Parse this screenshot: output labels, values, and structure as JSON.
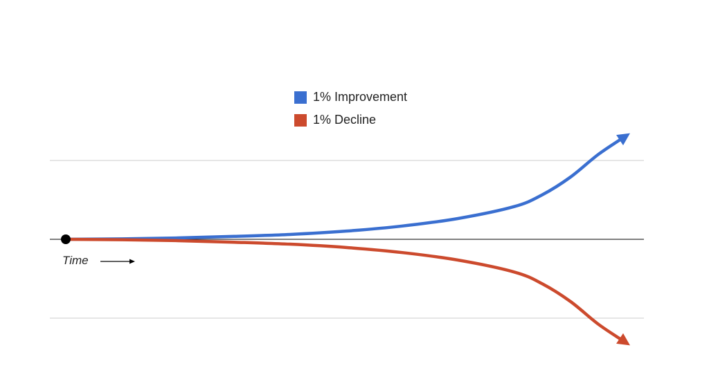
{
  "chart_data": {
    "type": "line",
    "title": "",
    "xlabel": "Time",
    "ylabel": "",
    "legend_position": "top-center",
    "grid": true,
    "series": [
      {
        "name": "1% Improvement",
        "color": "#3a6fd0",
        "x": [
          0,
          0.1,
          0.2,
          0.3,
          0.4,
          0.5,
          0.6,
          0.7,
          0.8,
          0.85,
          0.9,
          0.95,
          1.0
        ],
        "y": [
          0,
          0.004,
          0.013,
          0.028,
          0.047,
          0.079,
          0.128,
          0.201,
          0.316,
          0.43,
          0.6,
          0.82,
          1.0
        ],
        "end_marker": "arrow"
      },
      {
        "name": "1% Decline",
        "color": "#cc4a2d",
        "x": [
          0,
          0.1,
          0.2,
          0.3,
          0.4,
          0.5,
          0.6,
          0.7,
          0.8,
          0.85,
          0.9,
          0.95,
          1.0
        ],
        "y": [
          0,
          -0.004,
          -0.013,
          -0.028,
          -0.047,
          -0.079,
          -0.128,
          -0.201,
          -0.316,
          -0.43,
          -0.6,
          -0.82,
          -1.0
        ],
        "end_marker": "arrow"
      }
    ],
    "origin_marker": {
      "x": 0,
      "y": 0
    },
    "xlim": [
      0,
      1
    ],
    "ylim": [
      -1.3,
      1.3
    ],
    "time_arrow": true
  }
}
